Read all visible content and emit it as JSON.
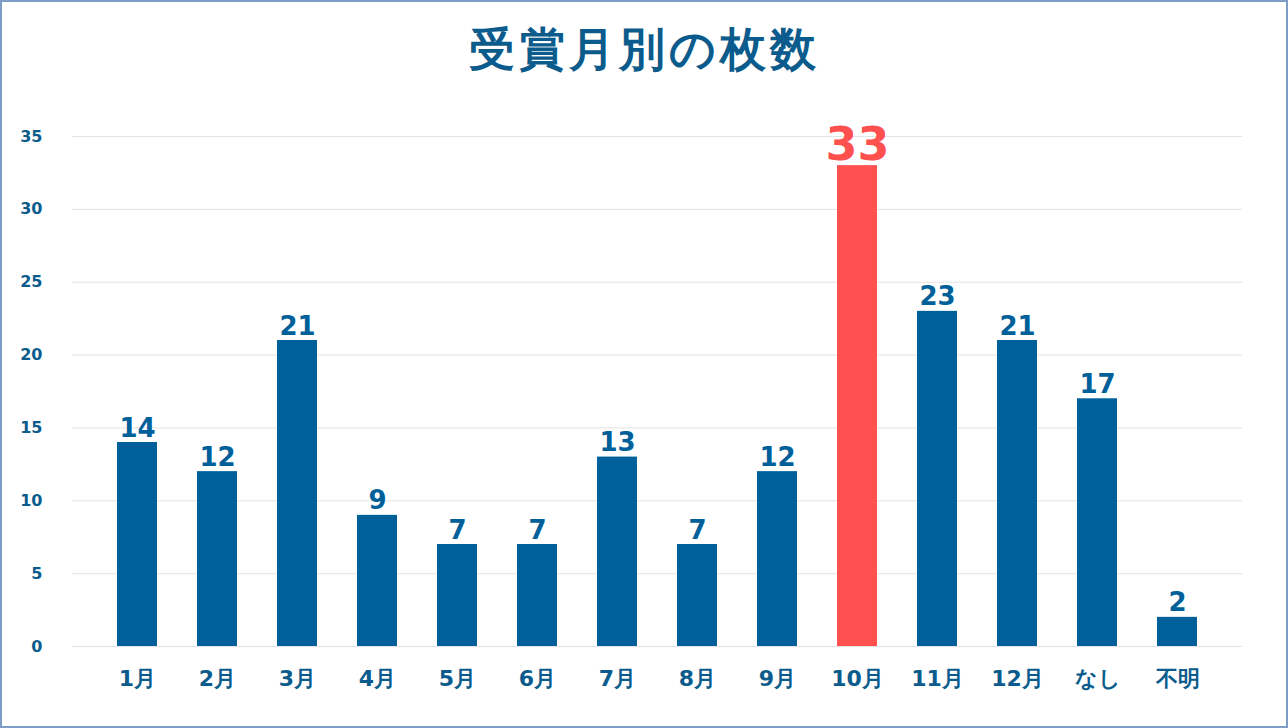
{
  "chart_data": {
    "type": "bar",
    "title": "受賞月別の枚数",
    "categories": [
      "1月",
      "2月",
      "3月",
      "4月",
      "5月",
      "6月",
      "7月",
      "8月",
      "9月",
      "10月",
      "11月",
      "12月",
      "なし",
      "不明"
    ],
    "values": [
      14,
      12,
      21,
      9,
      7,
      7,
      13,
      7,
      12,
      33,
      23,
      21,
      17,
      2
    ],
    "colors": [
      "#00609a",
      "#00609a",
      "#00609a",
      "#00609a",
      "#00609a",
      "#00609a",
      "#00609a",
      "#00609a",
      "#00609a",
      "#ff5050",
      "#00609a",
      "#00609a",
      "#00609a",
      "#00609a"
    ],
    "ylim": [
      0,
      35
    ],
    "yticks": [
      0,
      5,
      10,
      15,
      20,
      25,
      30,
      35
    ],
    "grid": true,
    "data_labels": true
  }
}
